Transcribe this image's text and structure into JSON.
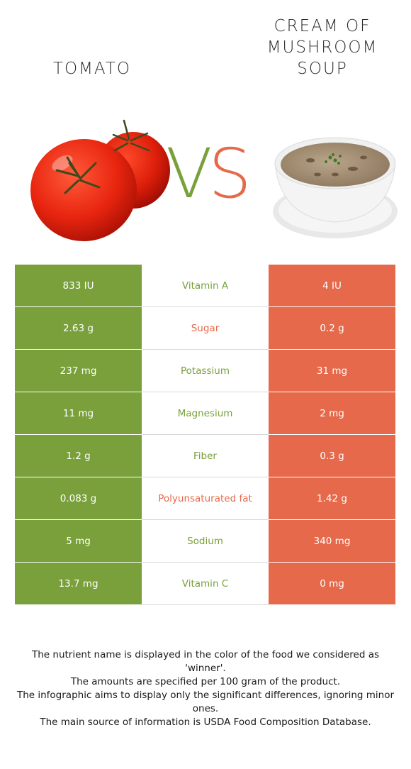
{
  "header": {
    "left_food": "TOMATO",
    "right_food": [
      "CREAM OF",
      "MUSHROOM",
      "SOUP"
    ],
    "vs_label": "VS"
  },
  "colors": {
    "left_winner": "#79a03a",
    "right_winner": "#e5694a"
  },
  "icons": {
    "left": "tomato-icon",
    "right": "soup-bowl-icon"
  },
  "rows": [
    {
      "nutrient": "Vitamin A",
      "left": "833 IU",
      "right": "4 IU",
      "winner": "left"
    },
    {
      "nutrient": "Sugar",
      "left": "2.63 g",
      "right": "0.2 g",
      "winner": "right"
    },
    {
      "nutrient": "Potassium",
      "left": "237 mg",
      "right": "31 mg",
      "winner": "left"
    },
    {
      "nutrient": "Magnesium",
      "left": "11 mg",
      "right": "2 mg",
      "winner": "left"
    },
    {
      "nutrient": "Fiber",
      "left": "1.2 g",
      "right": "0.3 g",
      "winner": "left"
    },
    {
      "nutrient": "Polyunsaturated fat",
      "left": "0.083 g",
      "right": "1.42 g",
      "winner": "right"
    },
    {
      "nutrient": "Sodium",
      "left": "5 mg",
      "right": "340 mg",
      "winner": "left"
    },
    {
      "nutrient": "Vitamin C",
      "left": "13.7 mg",
      "right": "0 mg",
      "winner": "left"
    }
  ],
  "footnote": [
    "The nutrient name is displayed in the color of the food we considered as 'winner'.",
    "The amounts are specified per 100 gram of the product.",
    "The infographic aims to display only the significant differences, ignoring minor ones.",
    "The main source of information is USDA Food Composition Database."
  ]
}
